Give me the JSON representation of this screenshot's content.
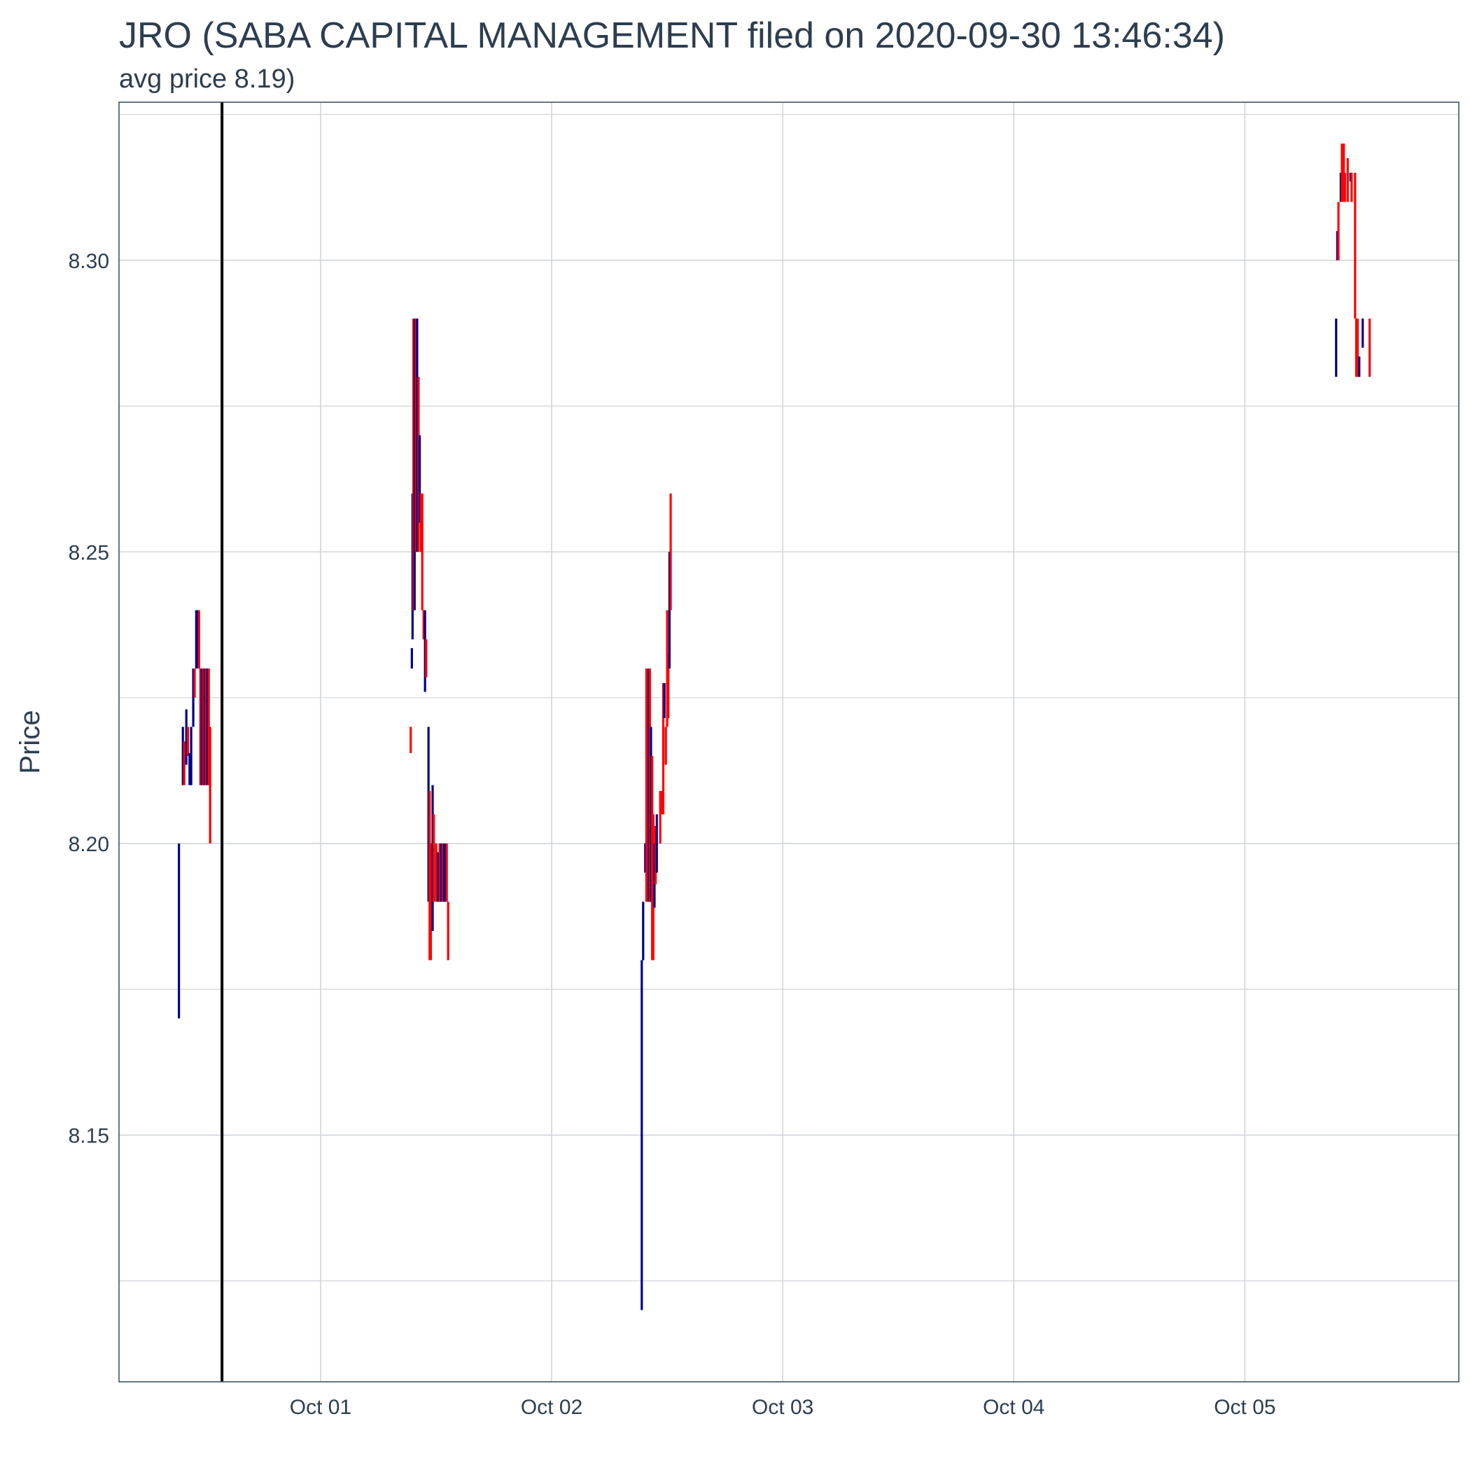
{
  "chart_data": {
    "type": "candlestick",
    "title": "JRO (SABA CAPITAL MANAGEMENT filed on 2020-09-30 13:46:34)",
    "subtitle": "avg price 8.19)",
    "ylabel": "Price",
    "xlabel": "",
    "x_ticks": [
      "Oct 01",
      "Oct 02",
      "Oct 03",
      "Oct 04",
      "Oct 05"
    ],
    "x_tick_values": [
      1,
      2,
      3,
      4,
      5
    ],
    "y_ticks": [
      "8.15",
      "8.20",
      "8.25",
      "8.30"
    ],
    "y_tick_values": [
      8.15,
      8.2,
      8.25,
      8.3
    ],
    "xlim": [
      0.1276,
      5.9258
    ],
    "ylim": [
      8.1077,
      8.3271
    ],
    "grid": true,
    "filing_marker_x": 0.5734,
    "colors": {
      "up": "#00008b",
      "down": "#ff0000",
      "marker": "#000000",
      "grid": "#d0d4d9",
      "border": "#34495e",
      "text": "#2c3e50"
    },
    "legend": "none",
    "segments": [
      {
        "x": 0.387,
        "low": 8.17,
        "high": 8.2,
        "color": "up"
      },
      {
        "x": 0.404,
        "low": 8.21,
        "high": 8.22,
        "color": "up"
      },
      {
        "x": 0.41,
        "low": 8.21,
        "high": 8.2175,
        "color": "down"
      },
      {
        "x": 0.419,
        "low": 8.2135,
        "high": 8.223,
        "color": "up"
      },
      {
        "x": 0.426,
        "low": 8.215,
        "high": 8.22,
        "color": "down"
      },
      {
        "x": 0.433,
        "low": 8.21,
        "high": 8.2155,
        "color": "up"
      },
      {
        "x": 0.44,
        "low": 8.21,
        "high": 8.22,
        "color": "up"
      },
      {
        "x": 0.449,
        "low": 8.22,
        "high": 8.23,
        "color": "up"
      },
      {
        "x": 0.455,
        "low": 8.225,
        "high": 8.23,
        "color": "down"
      },
      {
        "x": 0.462,
        "low": 8.23,
        "high": 8.24,
        "color": "up"
      },
      {
        "x": 0.468,
        "low": 8.23,
        "high": 8.24,
        "color": "up"
      },
      {
        "x": 0.474,
        "low": 8.23,
        "high": 8.24,
        "color": "down"
      },
      {
        "x": 0.48,
        "low": 8.21,
        "high": 8.23,
        "color": "down"
      },
      {
        "x": 0.486,
        "low": 8.21,
        "high": 8.23,
        "color": "up"
      },
      {
        "x": 0.492,
        "low": 8.21,
        "high": 8.23,
        "color": "down"
      },
      {
        "x": 0.498,
        "low": 8.21,
        "high": 8.23,
        "color": "up"
      },
      {
        "x": 0.504,
        "low": 8.21,
        "high": 8.23,
        "color": "down"
      },
      {
        "x": 0.51,
        "low": 8.21,
        "high": 8.23,
        "color": "up"
      },
      {
        "x": 0.516,
        "low": 8.21,
        "high": 8.23,
        "color": "down"
      },
      {
        "x": 0.522,
        "low": 8.2,
        "high": 8.22,
        "color": "down"
      },
      {
        "x": 1.39,
        "low": 8.2155,
        "high": 8.22,
        "color": "down"
      },
      {
        "x": 1.395,
        "low": 8.23,
        "high": 8.2335,
        "color": "up"
      },
      {
        "x": 1.398,
        "low": 8.235,
        "high": 8.26,
        "color": "up"
      },
      {
        "x": 1.402,
        "low": 8.24,
        "high": 8.29,
        "color": "down"
      },
      {
        "x": 1.407,
        "low": 8.24,
        "high": 8.29,
        "color": "up"
      },
      {
        "x": 1.413,
        "low": 8.25,
        "high": 8.29,
        "color": "down"
      },
      {
        "x": 1.418,
        "low": 8.25,
        "high": 8.29,
        "color": "up"
      },
      {
        "x": 1.424,
        "low": 8.25,
        "high": 8.28,
        "color": "down"
      },
      {
        "x": 1.429,
        "low": 8.255,
        "high": 8.27,
        "color": "up"
      },
      {
        "x": 1.435,
        "low": 8.25,
        "high": 8.26,
        "color": "down"
      },
      {
        "x": 1.44,
        "low": 8.24,
        "high": 8.26,
        "color": "down"
      },
      {
        "x": 1.446,
        "low": 8.235,
        "high": 8.24,
        "color": "down"
      },
      {
        "x": 1.452,
        "low": 8.226,
        "high": 8.24,
        "color": "up"
      },
      {
        "x": 1.457,
        "low": 8.2285,
        "high": 8.235,
        "color": "down"
      },
      {
        "x": 1.467,
        "low": 8.19,
        "high": 8.22,
        "color": "up"
      },
      {
        "x": 1.472,
        "low": 8.18,
        "high": 8.209,
        "color": "down"
      },
      {
        "x": 1.477,
        "low": 8.18,
        "high": 8.2,
        "color": "down"
      },
      {
        "x": 1.485,
        "low": 8.185,
        "high": 8.21,
        "color": "up"
      },
      {
        "x": 1.49,
        "low": 8.19,
        "high": 8.205,
        "color": "down"
      },
      {
        "x": 1.5,
        "low": 8.19,
        "high": 8.2,
        "color": "down"
      },
      {
        "x": 1.508,
        "low": 8.19,
        "high": 8.1985,
        "color": "up"
      },
      {
        "x": 1.516,
        "low": 8.19,
        "high": 8.2,
        "color": "down"
      },
      {
        "x": 1.522,
        "low": 8.19,
        "high": 8.2,
        "color": "up"
      },
      {
        "x": 1.528,
        "low": 8.19,
        "high": 8.2,
        "color": "down"
      },
      {
        "x": 1.534,
        "low": 8.19,
        "high": 8.2,
        "color": "up"
      },
      {
        "x": 1.54,
        "low": 8.19,
        "high": 8.2,
        "color": "up"
      },
      {
        "x": 1.546,
        "low": 8.19,
        "high": 8.2,
        "color": "down"
      },
      {
        "x": 1.552,
        "low": 8.18,
        "high": 8.19,
        "color": "down"
      },
      {
        "x": 2.39,
        "low": 8.12,
        "high": 8.18,
        "color": "up"
      },
      {
        "x": 2.396,
        "low": 8.18,
        "high": 8.19,
        "color": "up"
      },
      {
        "x": 2.405,
        "low": 8.195,
        "high": 8.2,
        "color": "up"
      },
      {
        "x": 2.41,
        "low": 8.19,
        "high": 8.23,
        "color": "down"
      },
      {
        "x": 2.42,
        "low": 8.19,
        "high": 8.23,
        "color": "up"
      },
      {
        "x": 2.425,
        "low": 8.19,
        "high": 8.23,
        "color": "down"
      },
      {
        "x": 2.43,
        "low": 8.19,
        "high": 8.22,
        "color": "up"
      },
      {
        "x": 2.435,
        "low": 8.18,
        "high": 8.215,
        "color": "down"
      },
      {
        "x": 2.44,
        "low": 8.18,
        "high": 8.205,
        "color": "down"
      },
      {
        "x": 2.445,
        "low": 8.189,
        "high": 8.2,
        "color": "up"
      },
      {
        "x": 2.45,
        "low": 8.193,
        "high": 8.203,
        "color": "down"
      },
      {
        "x": 2.455,
        "low": 8.195,
        "high": 8.205,
        "color": "up"
      },
      {
        "x": 2.47,
        "low": 8.2,
        "high": 8.209,
        "color": "down"
      },
      {
        "x": 2.475,
        "low": 8.205,
        "high": 8.209,
        "color": "down"
      },
      {
        "x": 2.483,
        "low": 8.205,
        "high": 8.2275,
        "color": "down"
      },
      {
        "x": 2.488,
        "low": 8.2215,
        "high": 8.2275,
        "color": "up"
      },
      {
        "x": 2.494,
        "low": 8.2135,
        "high": 8.22,
        "color": "down"
      },
      {
        "x": 2.5,
        "low": 8.22,
        "high": 8.24,
        "color": "down"
      },
      {
        "x": 2.505,
        "low": 8.2215,
        "high": 8.2325,
        "color": "down"
      },
      {
        "x": 2.51,
        "low": 8.23,
        "high": 8.25,
        "color": "up"
      },
      {
        "x": 2.515,
        "low": 8.24,
        "high": 8.26,
        "color": "down"
      },
      {
        "x": 5.395,
        "low": 8.28,
        "high": 8.29,
        "color": "up"
      },
      {
        "x": 5.4,
        "low": 8.3,
        "high": 8.305,
        "color": "up"
      },
      {
        "x": 5.405,
        "low": 8.3,
        "high": 8.31,
        "color": "down"
      },
      {
        "x": 5.415,
        "low": 8.31,
        "high": 8.315,
        "color": "up"
      },
      {
        "x": 5.42,
        "low": 8.31,
        "high": 8.32,
        "color": "down"
      },
      {
        "x": 5.428,
        "low": 8.31,
        "high": 8.32,
        "color": "down"
      },
      {
        "x": 5.433,
        "low": 8.31,
        "high": 8.315,
        "color": "down"
      },
      {
        "x": 5.445,
        "low": 8.31,
        "high": 8.3175,
        "color": "down"
      },
      {
        "x": 5.457,
        "low": 8.3135,
        "high": 8.315,
        "color": "up"
      },
      {
        "x": 5.462,
        "low": 8.31,
        "high": 8.315,
        "color": "down"
      },
      {
        "x": 5.477,
        "low": 8.29,
        "high": 8.315,
        "color": "down"
      },
      {
        "x": 5.482,
        "low": 8.28,
        "high": 8.29,
        "color": "down"
      },
      {
        "x": 5.488,
        "low": 8.28,
        "high": 8.29,
        "color": "down"
      },
      {
        "x": 5.495,
        "low": 8.28,
        "high": 8.2835,
        "color": "up"
      },
      {
        "x": 5.51,
        "low": 8.285,
        "high": 8.29,
        "color": "up"
      },
      {
        "x": 5.54,
        "low": 8.28,
        "high": 8.29,
        "color": "down"
      }
    ]
  }
}
